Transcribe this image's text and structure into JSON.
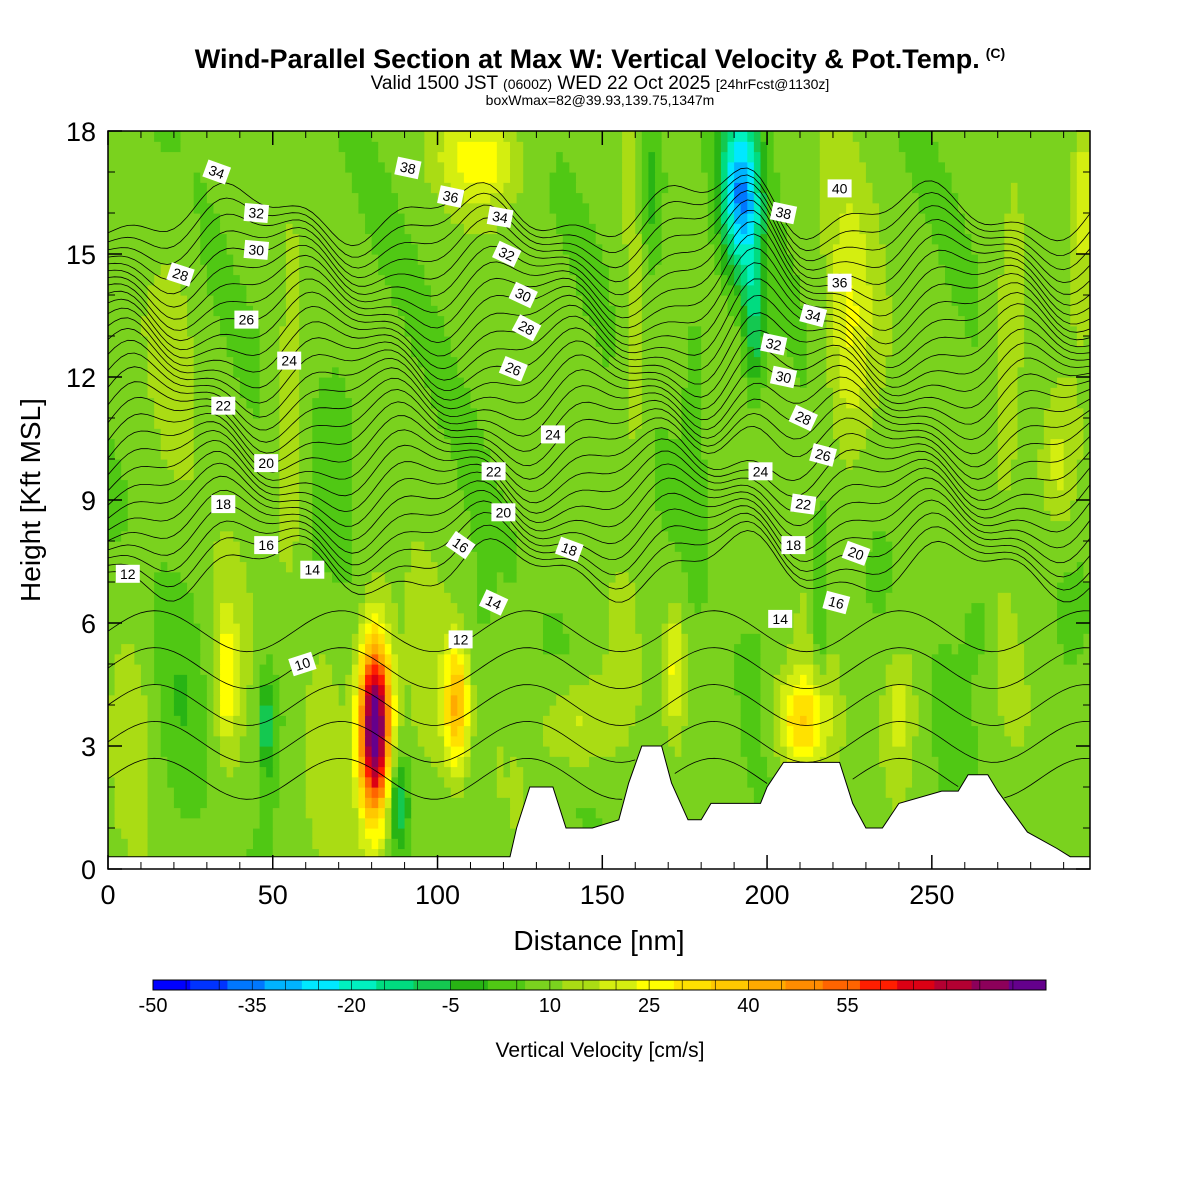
{
  "title": {
    "main": "Wind-Parallel Section at Max W: Vertical Velocity & Pot.Temp.",
    "copyright": "(C)",
    "valid_prefix": "Valid 1500 JST",
    "valid_utc": "(0600Z)",
    "valid_date": "WED 22 Oct 2025",
    "forecast": "[24hrFcst@1130z]",
    "boxmax": "boxWmax=82@39.93,139.75,1347m"
  },
  "chart_data": {
    "type": "heatmap",
    "xlabel": "Distance [nm]",
    "ylabel": "Height [Kft MSL]",
    "xlim": [
      0,
      298
    ],
    "ylim": [
      0,
      18
    ],
    "xticks": [
      0,
      50,
      100,
      150,
      200,
      250
    ],
    "yticks": [
      0,
      3,
      6,
      9,
      12,
      15,
      18
    ],
    "colorbar": {
      "label": "Vertical Velocity [cm/s]",
      "min": -50,
      "max": 85,
      "step": 5,
      "tick_values": [
        -50,
        -35,
        -20,
        -5,
        10,
        25,
        40,
        55
      ],
      "tick_labels": [
        "-50",
        "-35",
        "-20",
        "-5",
        "10",
        "25",
        "40",
        "55"
      ],
      "colors": [
        "#0000ff",
        "#0033ff",
        "#0077ff",
        "#00b4ff",
        "#00e8ff",
        "#00f0c0",
        "#00dc80",
        "#14c850",
        "#28b414",
        "#50c814",
        "#7ad21e",
        "#aadc14",
        "#d4ee10",
        "#ffff00",
        "#ffe100",
        "#ffc800",
        "#ffaa00",
        "#ff8c00",
        "#ff6400",
        "#ff1e00",
        "#dc0014",
        "#b40032",
        "#8c005a",
        "#64008c"
      ]
    },
    "terrain_kft": [
      [
        0,
        0.3
      ],
      [
        122,
        0.3
      ],
      [
        124,
        1.0
      ],
      [
        128,
        2.0
      ],
      [
        135,
        2.0
      ],
      [
        139,
        1.0
      ],
      [
        147,
        1.0
      ],
      [
        155,
        1.2
      ],
      [
        158,
        2.1
      ],
      [
        162,
        3.0
      ],
      [
        168,
        3.0
      ],
      [
        171,
        2.1
      ],
      [
        176,
        1.2
      ],
      [
        180,
        1.2
      ],
      [
        183,
        1.6
      ],
      [
        198,
        1.6
      ],
      [
        200,
        2.0
      ],
      [
        205,
        2.6
      ],
      [
        222,
        2.6
      ],
      [
        226,
        1.6
      ],
      [
        230,
        1.0
      ],
      [
        235,
        1.0
      ],
      [
        240,
        1.6
      ],
      [
        253,
        1.9
      ],
      [
        258,
        1.9
      ],
      [
        261,
        2.3
      ],
      [
        267,
        2.3
      ],
      [
        270,
        1.9
      ],
      [
        279,
        0.9
      ],
      [
        288,
        0.5
      ],
      [
        292,
        0.3
      ],
      [
        298,
        0.3
      ]
    ],
    "velocity_features": [
      {
        "x": 81,
        "z": 3.5,
        "w": 82
      },
      {
        "x": 106,
        "z": 4.0,
        "w": 35
      },
      {
        "x": 210,
        "z": 3.6,
        "w": 28
      },
      {
        "x": 112,
        "z": 17.3,
        "w": 18
      },
      {
        "x": 192,
        "z": 16.5,
        "w": -35
      },
      {
        "x": 88,
        "z": 1.6,
        "w": -16
      }
    ],
    "isentrope_labels": [
      {
        "x": 33,
        "z": 17.0,
        "text": "34",
        "angle": 20
      },
      {
        "x": 91,
        "z": 17.1,
        "text": "38",
        "angle": 12
      },
      {
        "x": 104,
        "z": 16.4,
        "text": "36",
        "angle": 12
      },
      {
        "x": 119,
        "z": 15.9,
        "text": "34",
        "angle": 10
      },
      {
        "x": 121,
        "z": 15.0,
        "text": "32",
        "angle": 25
      },
      {
        "x": 45,
        "z": 16.0,
        "text": "32",
        "angle": 5
      },
      {
        "x": 45,
        "z": 15.1,
        "text": "30",
        "angle": 5
      },
      {
        "x": 22,
        "z": 14.5,
        "text": "28",
        "angle": 18
      },
      {
        "x": 42,
        "z": 13.4,
        "text": "26",
        "angle": 0
      },
      {
        "x": 126,
        "z": 14.0,
        "text": "30",
        "angle": 25
      },
      {
        "x": 127,
        "z": 13.2,
        "text": "28",
        "angle": 28
      },
      {
        "x": 123,
        "z": 12.2,
        "text": "26",
        "angle": 22
      },
      {
        "x": 55,
        "z": 12.4,
        "text": "24",
        "angle": 0
      },
      {
        "x": 35,
        "z": 11.3,
        "text": "22",
        "angle": 0
      },
      {
        "x": 135,
        "z": 10.6,
        "text": "24",
        "angle": 0
      },
      {
        "x": 48,
        "z": 9.9,
        "text": "20",
        "angle": 0
      },
      {
        "x": 117,
        "z": 9.7,
        "text": "22",
        "angle": 0
      },
      {
        "x": 120,
        "z": 8.7,
        "text": "20",
        "angle": 0
      },
      {
        "x": 35,
        "z": 8.9,
        "text": "18",
        "angle": 0
      },
      {
        "x": 48,
        "z": 7.9,
        "text": "16",
        "angle": 0
      },
      {
        "x": 107,
        "z": 7.9,
        "text": "16",
        "angle": 35
      },
      {
        "x": 140,
        "z": 7.8,
        "text": "18",
        "angle": 20
      },
      {
        "x": 6,
        "z": 7.2,
        "text": "12",
        "angle": 0
      },
      {
        "x": 62,
        "z": 7.3,
        "text": "14",
        "angle": 0
      },
      {
        "x": 117,
        "z": 6.5,
        "text": "14",
        "angle": 25
      },
      {
        "x": 107,
        "z": 5.6,
        "text": "12",
        "angle": 0
      },
      {
        "x": 59,
        "z": 5.0,
        "text": "10",
        "angle": -18
      },
      {
        "x": 222,
        "z": 16.6,
        "text": "40",
        "angle": 0
      },
      {
        "x": 205,
        "z": 16.0,
        "text": "38",
        "angle": 12
      },
      {
        "x": 222,
        "z": 14.3,
        "text": "36",
        "angle": 0
      },
      {
        "x": 214,
        "z": 13.5,
        "text": "34",
        "angle": 15
      },
      {
        "x": 202,
        "z": 12.8,
        "text": "32",
        "angle": 12
      },
      {
        "x": 205,
        "z": 12.0,
        "text": "30",
        "angle": 12
      },
      {
        "x": 211,
        "z": 11.0,
        "text": "28",
        "angle": 25
      },
      {
        "x": 217,
        "z": 10.1,
        "text": "26",
        "angle": 15
      },
      {
        "x": 198,
        "z": 9.7,
        "text": "24",
        "angle": 0
      },
      {
        "x": 211,
        "z": 8.9,
        "text": "22",
        "angle": 8
      },
      {
        "x": 208,
        "z": 7.9,
        "text": "18",
        "angle": 0
      },
      {
        "x": 227,
        "z": 7.7,
        "text": "20",
        "angle": 20
      },
      {
        "x": 221,
        "z": 6.5,
        "text": "16",
        "angle": 15
      },
      {
        "x": 204,
        "z": 6.1,
        "text": "14",
        "angle": 0
      }
    ]
  }
}
